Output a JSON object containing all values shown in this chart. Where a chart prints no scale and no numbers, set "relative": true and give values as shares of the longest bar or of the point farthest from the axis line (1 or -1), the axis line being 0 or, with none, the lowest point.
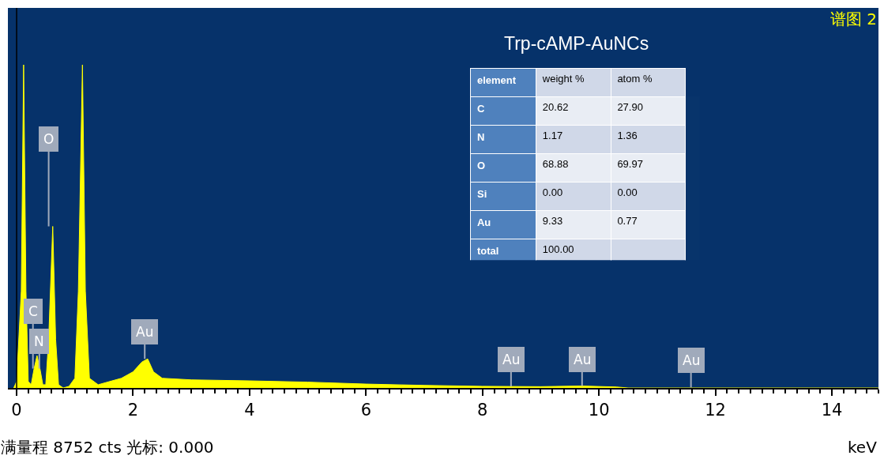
{
  "chart_data": {
    "type": "area",
    "title": "Trp-cAMP-AuNCs",
    "xlabel": "keV",
    "relative": true,
    "color": "#ffff00",
    "grid": false,
    "x": [
      -0.05,
      0.0,
      0.08,
      0.12,
      0.16,
      0.2,
      0.25,
      0.3,
      0.35,
      0.4,
      0.45,
      0.5,
      0.55,
      0.62,
      0.67,
      0.72,
      0.8,
      0.9,
      1.0,
      1.06,
      1.13,
      1.18,
      1.25,
      1.4,
      1.6,
      1.8,
      2.0,
      2.15,
      2.25,
      2.35,
      2.5,
      3.0,
      4.0,
      5.0,
      6.0,
      7.0,
      8.0,
      9.0,
      9.7,
      10.3,
      10.5,
      14.8
    ],
    "values": [
      0,
      0.02,
      0.3,
      1.0,
      0.3,
      0.02,
      0.01,
      0.06,
      0.1,
      0.06,
      0.01,
      0.01,
      0.15,
      0.5,
      0.15,
      0.01,
      0.0,
      0.005,
      0.03,
      0.3,
      1.0,
      0.3,
      0.03,
      0.01,
      0.02,
      0.03,
      0.05,
      0.08,
      0.09,
      0.05,
      0.03,
      0.025,
      0.022,
      0.018,
      0.012,
      0.008,
      0.005,
      0.004,
      0.006,
      0.003,
      0,
      0
    ],
    "xlim": [
      -0.15,
      14.8
    ],
    "xticks": [
      0,
      2,
      4,
      6,
      8,
      10,
      12,
      14
    ],
    "ref_lines": [
      {
        "axis": "x",
        "value": 0,
        "color": "#000000"
      }
    ],
    "annotations": [
      "谱图 2",
      "满量程 8752 cts 光标: 0.000",
      "element",
      "weight %",
      "atom %",
      "C",
      "20.62",
      "27.90",
      "N",
      "1.17",
      "1.36",
      "O",
      "68.88",
      "69.97",
      "Si",
      "0.00",
      "0.00",
      "Au",
      "9.33",
      "0.77",
      "total",
      "100.00",
      {
        "text": "N",
        "x": 0.39,
        "y": 0.06
      },
      {
        "text": "C",
        "x": 0.28,
        "y": 0.06
      },
      {
        "text": "O",
        "x": 0.55,
        "y": 0.5
      },
      {
        "text": "Au",
        "x": 2.2,
        "y": 0.09
      },
      {
        "text": "Au",
        "x": 8.49,
        "y": 0.005
      },
      {
        "text": "Au",
        "x": 9.71,
        "y": 0.006
      },
      {
        "text": "Au",
        "x": 11.58,
        "y": 0.002
      }
    ]
  }
}
